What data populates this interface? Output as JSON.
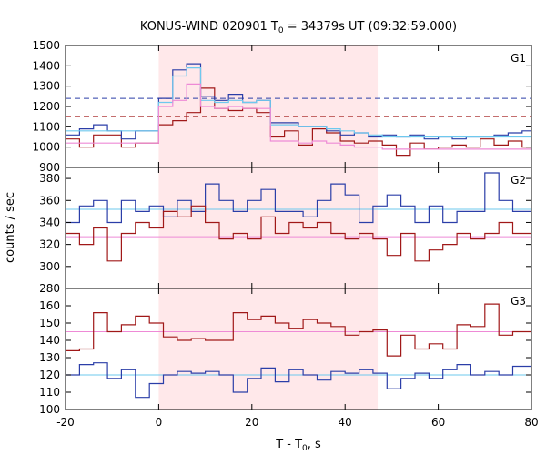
{
  "chart_data": {
    "type": "line",
    "title": "KONUS-WIND 020901 T",
    "title_sub": "0",
    "title_rest": " = 34379s UT (09:32:59.000)",
    "xlabel": "T - T",
    "xlabel_sub": "0",
    "xlabel_rest": ", s",
    "ylabel": "counts / sec",
    "xlim": [
      -20,
      80
    ],
    "xticks": [
      -20,
      0,
      20,
      40,
      60,
      80
    ],
    "shaded_interval": [
      0,
      47
    ],
    "colors": {
      "shade": "#ffe8ea",
      "dark_red": "#a01818",
      "blue": "#2b3ea8",
      "light_blue": "#6ec9ee",
      "pink": "#ee8ad6"
    },
    "panels": [
      {
        "label": "G1",
        "ylim": [
          900,
          1500
        ],
        "yticks": [
          900,
          1000,
          1100,
          1200,
          1300,
          1400,
          1500
        ],
        "hlines": [
          {
            "y": 1240,
            "color": "blue",
            "dashed": true
          },
          {
            "y": 1150,
            "color": "dark_red",
            "dashed": true
          }
        ],
        "steps": [
          {
            "color": "dark_red",
            "edges": [
              -20,
              -17,
              -14,
              -11,
              -8,
              -5,
              0,
              3,
              6,
              9,
              12,
              15,
              18,
              21,
              24,
              27,
              30,
              33,
              36,
              39,
              42,
              45,
              48,
              51,
              54,
              57,
              60,
              63,
              66,
              69,
              72,
              75,
              78,
              80
            ],
            "values": [
              1040,
              1000,
              1060,
              1060,
              1000,
              1020,
              1110,
              1130,
              1170,
              1290,
              1190,
              1180,
              1190,
              1170,
              1050,
              1080,
              1010,
              1090,
              1070,
              1030,
              1020,
              1030,
              1010,
              960,
              1020,
              990,
              1000,
              1010,
              1000,
              1040,
              1010,
              1030,
              1000
            ]
          },
          {
            "color": "blue",
            "edges": [
              -20,
              -17,
              -14,
              -11,
              -8,
              -5,
              0,
              3,
              6,
              9,
              12,
              15,
              18,
              21,
              24,
              27,
              30,
              33,
              36,
              39,
              42,
              45,
              48,
              51,
              54,
              57,
              60,
              63,
              66,
              69,
              72,
              75,
              78,
              80
            ],
            "values": [
              1060,
              1090,
              1110,
              1080,
              1040,
              1080,
              1240,
              1380,
              1410,
              1250,
              1230,
              1260,
              1220,
              1230,
              1120,
              1120,
              1100,
              1100,
              1080,
              1060,
              1070,
              1050,
              1060,
              1050,
              1060,
              1040,
              1050,
              1040,
              1050,
              1050,
              1060,
              1070,
              1080
            ]
          },
          {
            "color": "light_blue",
            "edges": [
              -20,
              0,
              3,
              6,
              9,
              12,
              15,
              18,
              21,
              24,
              27,
              30,
              33,
              36,
              39,
              42,
              45,
              48,
              60,
              80
            ],
            "values": [
              1080,
              1220,
              1350,
              1390,
              1230,
              1220,
              1230,
              1220,
              1230,
              1110,
              1110,
              1100,
              1100,
              1090,
              1080,
              1070,
              1060,
              1050,
              1050
            ]
          },
          {
            "color": "pink",
            "edges": [
              -20,
              0,
              3,
              6,
              9,
              12,
              15,
              18,
              21,
              24,
              27,
              30,
              33,
              36,
              39,
              42,
              45,
              48,
              80
            ],
            "values": [
              1020,
              1200,
              1230,
              1310,
              1200,
              1190,
              1200,
              1190,
              1190,
              1030,
              1030,
              1020,
              1030,
              1020,
              1010,
              1000,
              1000,
              990
            ]
          }
        ]
      },
      {
        "label": "G2",
        "ylim": [
          280,
          390
        ],
        "yticks": [
          280,
          300,
          320,
          340,
          360,
          380
        ],
        "hlines": [
          {
            "y": 352,
            "color": "light_blue",
            "dashed": false
          },
          {
            "y": 327,
            "color": "pink",
            "dashed": false
          }
        ],
        "steps": [
          {
            "color": "blue",
            "edges": [
              -20,
              -17,
              -14,
              -11,
              -8,
              -5,
              -2,
              1,
              4,
              7,
              10,
              13,
              16,
              19,
              22,
              25,
              28,
              31,
              34,
              37,
              40,
              43,
              46,
              49,
              52,
              55,
              58,
              61,
              64,
              67,
              70,
              73,
              76,
              80
            ],
            "values": [
              340,
              355,
              360,
              340,
              360,
              350,
              355,
              345,
              360,
              350,
              375,
              360,
              350,
              360,
              370,
              350,
              350,
              345,
              360,
              375,
              365,
              340,
              355,
              365,
              355,
              340,
              355,
              340,
              350,
              350,
              385,
              360,
              350
            ]
          },
          {
            "color": "dark_red",
            "edges": [
              -20,
              -17,
              -14,
              -11,
              -8,
              -5,
              -2,
              1,
              4,
              7,
              10,
              13,
              16,
              19,
              22,
              25,
              28,
              31,
              34,
              37,
              40,
              43,
              46,
              49,
              52,
              55,
              58,
              61,
              64,
              67,
              70,
              73,
              76,
              80
            ],
            "values": [
              330,
              320,
              335,
              305,
              330,
              340,
              335,
              350,
              345,
              355,
              340,
              325,
              330,
              325,
              345,
              330,
              340,
              335,
              340,
              330,
              325,
              330,
              325,
              310,
              330,
              305,
              315,
              320,
              330,
              325,
              330,
              340,
              330
            ]
          }
        ]
      },
      {
        "label": "G3",
        "ylim": [
          100,
          170
        ],
        "yticks": [
          100,
          110,
          120,
          130,
          140,
          150,
          160
        ],
        "hlines": [
          {
            "y": 145,
            "color": "pink",
            "dashed": false
          },
          {
            "y": 120,
            "color": "light_blue",
            "dashed": false
          }
        ],
        "steps": [
          {
            "color": "dark_red",
            "edges": [
              -20,
              -17,
              -14,
              -11,
              -8,
              -5,
              -2,
              1,
              4,
              7,
              10,
              13,
              16,
              19,
              22,
              25,
              28,
              31,
              34,
              37,
              40,
              43,
              46,
              49,
              52,
              55,
              58,
              61,
              64,
              67,
              70,
              73,
              76,
              80
            ],
            "values": [
              134,
              135,
              156,
              145,
              149,
              154,
              150,
              142,
              140,
              141,
              140,
              140,
              156,
              152,
              154,
              150,
              147,
              152,
              150,
              148,
              143,
              145,
              146,
              131,
              143,
              135,
              138,
              135,
              149,
              148,
              161,
              143,
              145
            ]
          },
          {
            "color": "blue",
            "edges": [
              -20,
              -17,
              -14,
              -11,
              -8,
              -5,
              -2,
              1,
              4,
              7,
              10,
              13,
              16,
              19,
              22,
              25,
              28,
              31,
              34,
              37,
              40,
              43,
              46,
              49,
              52,
              55,
              58,
              61,
              64,
              67,
              70,
              73,
              76,
              80
            ],
            "values": [
              120,
              126,
              127,
              118,
              123,
              107,
              115,
              120,
              122,
              121,
              122,
              120,
              110,
              118,
              124,
              116,
              123,
              120,
              117,
              122,
              121,
              123,
              121,
              112,
              118,
              121,
              118,
              123,
              126,
              120,
              122,
              120,
              125
            ]
          }
        ]
      }
    ]
  }
}
